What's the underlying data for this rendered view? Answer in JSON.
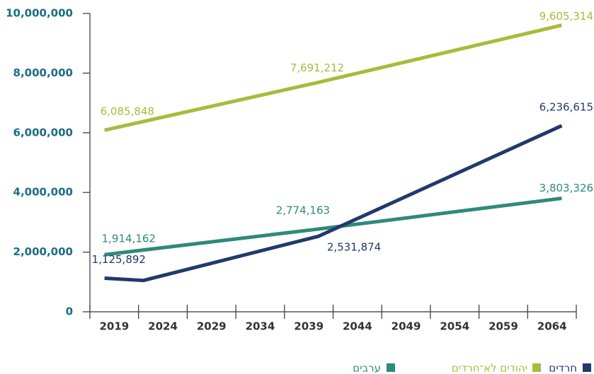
{
  "chart_data": {
    "type": "line",
    "xlim": [
      2016.5,
      2066.5
    ],
    "xticks": [
      2019,
      2024,
      2029,
      2034,
      2039,
      2044,
      2049,
      2054,
      2059,
      2064
    ],
    "ylim": [
      0,
      10000000
    ],
    "yticks": [
      0,
      {
        "value": 2000000,
        "label": "2,000,000"
      },
      {
        "value": 4000000,
        "label": "4,000,000"
      },
      {
        "value": 6000000,
        "label": "6,000,000"
      },
      {
        "value": 8000000,
        "label": "8,000,000"
      },
      {
        "value": 10000000,
        "label": "10,000,000"
      }
    ],
    "series": [
      {
        "name": "יהודים לא־חרדים",
        "color": "#a8bb3a",
        "x": [
          2018,
          2040,
          2065
        ],
        "values": [
          6085848,
          7691212,
          9605314
        ],
        "value_labels": [
          "6,085,848",
          "7,691,212",
          "9,605,314"
        ]
      },
      {
        "name": "ערבים",
        "color": "#2e8a7a",
        "x": [
          2018,
          2040,
          2065
        ],
        "values": [
          1914162,
          2774163,
          3803326
        ],
        "value_labels": [
          "1,914,162",
          "2,774,163",
          "3,803,326"
        ]
      },
      {
        "name": "חרדים",
        "color": "#23396b",
        "x": [
          2018,
          2022,
          2040,
          2065
        ],
        "values": [
          1125892,
          1050000,
          2531874,
          6236615
        ],
        "value_labels": [
          "1,125,892",
          null,
          "2,531,874",
          "6,236,615"
        ]
      }
    ]
  }
}
